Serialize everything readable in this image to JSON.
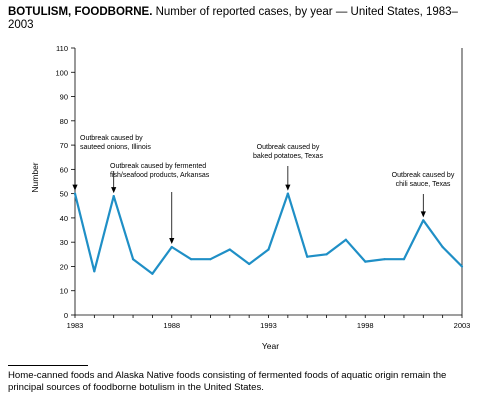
{
  "chart_data": {
    "type": "line",
    "title_bold": "BOTULISM, FOODBORNE.",
    "title_rest": " Number of reported cases, by year — United States, 1983–2003",
    "xlabel": "Year",
    "ylabel": "Number",
    "xlim": [
      1983,
      2003
    ],
    "ylim": [
      0,
      110
    ],
    "x_ticks": [
      "1983",
      "1988",
      "1993",
      "1998",
      "2003"
    ],
    "y_ticks": [
      "0",
      "10",
      "20",
      "30",
      "40",
      "50",
      "60",
      "70",
      "80",
      "90",
      "100",
      "110"
    ],
    "grid": false,
    "line_color": "#1f8fc6",
    "x": [
      1983,
      1984,
      1985,
      1986,
      1987,
      1988,
      1989,
      1990,
      1991,
      1992,
      1993,
      1994,
      1995,
      1996,
      1997,
      1998,
      1999,
      2000,
      2001,
      2002,
      2003
    ],
    "values": [
      50,
      18,
      49,
      23,
      17,
      28,
      23,
      23,
      27,
      21,
      27,
      50,
      24,
      25,
      31,
      22,
      23,
      23,
      39,
      28,
      20
    ],
    "annotations": [
      {
        "lines": [
          "Outbreak caused by",
          "sauteed onions, Illinois"
        ],
        "year": 1983
      },
      {
        "lines": [
          "Outbreak caused by fermented",
          "fish/seafood products, Arkansas"
        ],
        "year": 1985
      },
      {
        "lines": [],
        "year": 1988
      },
      {
        "lines": [
          "Outbreak caused by",
          "baked potatoes, Texas"
        ],
        "year": 1994
      },
      {
        "lines": [
          "Outbreak caused by",
          "chili sauce, Texas"
        ],
        "year": 2001
      }
    ]
  },
  "footnote": "Home-canned foods and Alaska Native foods consisting of fermented foods of aquatic origin remain the principal sources of foodborne botulism in the United States."
}
